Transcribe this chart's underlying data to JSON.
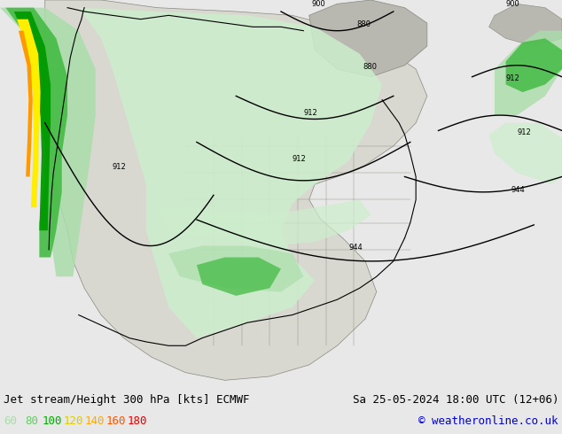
{
  "title_left": "Jet stream/Height 300 hPa [kts] ECMWF",
  "title_right": "Sa 25-05-2024 18:00 UTC (12+06)",
  "copyright": "© weatheronline.co.uk",
  "legend_values": [
    "60",
    "80",
    "100",
    "120",
    "140",
    "160",
    "180"
  ],
  "legend_colors": [
    "#aaddaa",
    "#66cc66",
    "#00aa00",
    "#ddcc00",
    "#ffaa00",
    "#ff5500",
    "#dd0000"
  ],
  "bg_color": "#e8e8e8",
  "land_color": "#d8d8d0",
  "ocean_color": "#e8e8e8",
  "land_detail_color": "#b8b8b0",
  "figsize": [
    6.34,
    4.9
  ],
  "dpi": 100,
  "font_color_title": "#000000",
  "font_color_copyright": "#0000cc",
  "jet_colors": {
    "light": "#cceecc",
    "medium_light": "#aaddaa",
    "medium": "#88cc88",
    "green": "#44bb44",
    "dark_green": "#009900",
    "yellow": "#ffee00",
    "orange": "#ff9900"
  }
}
